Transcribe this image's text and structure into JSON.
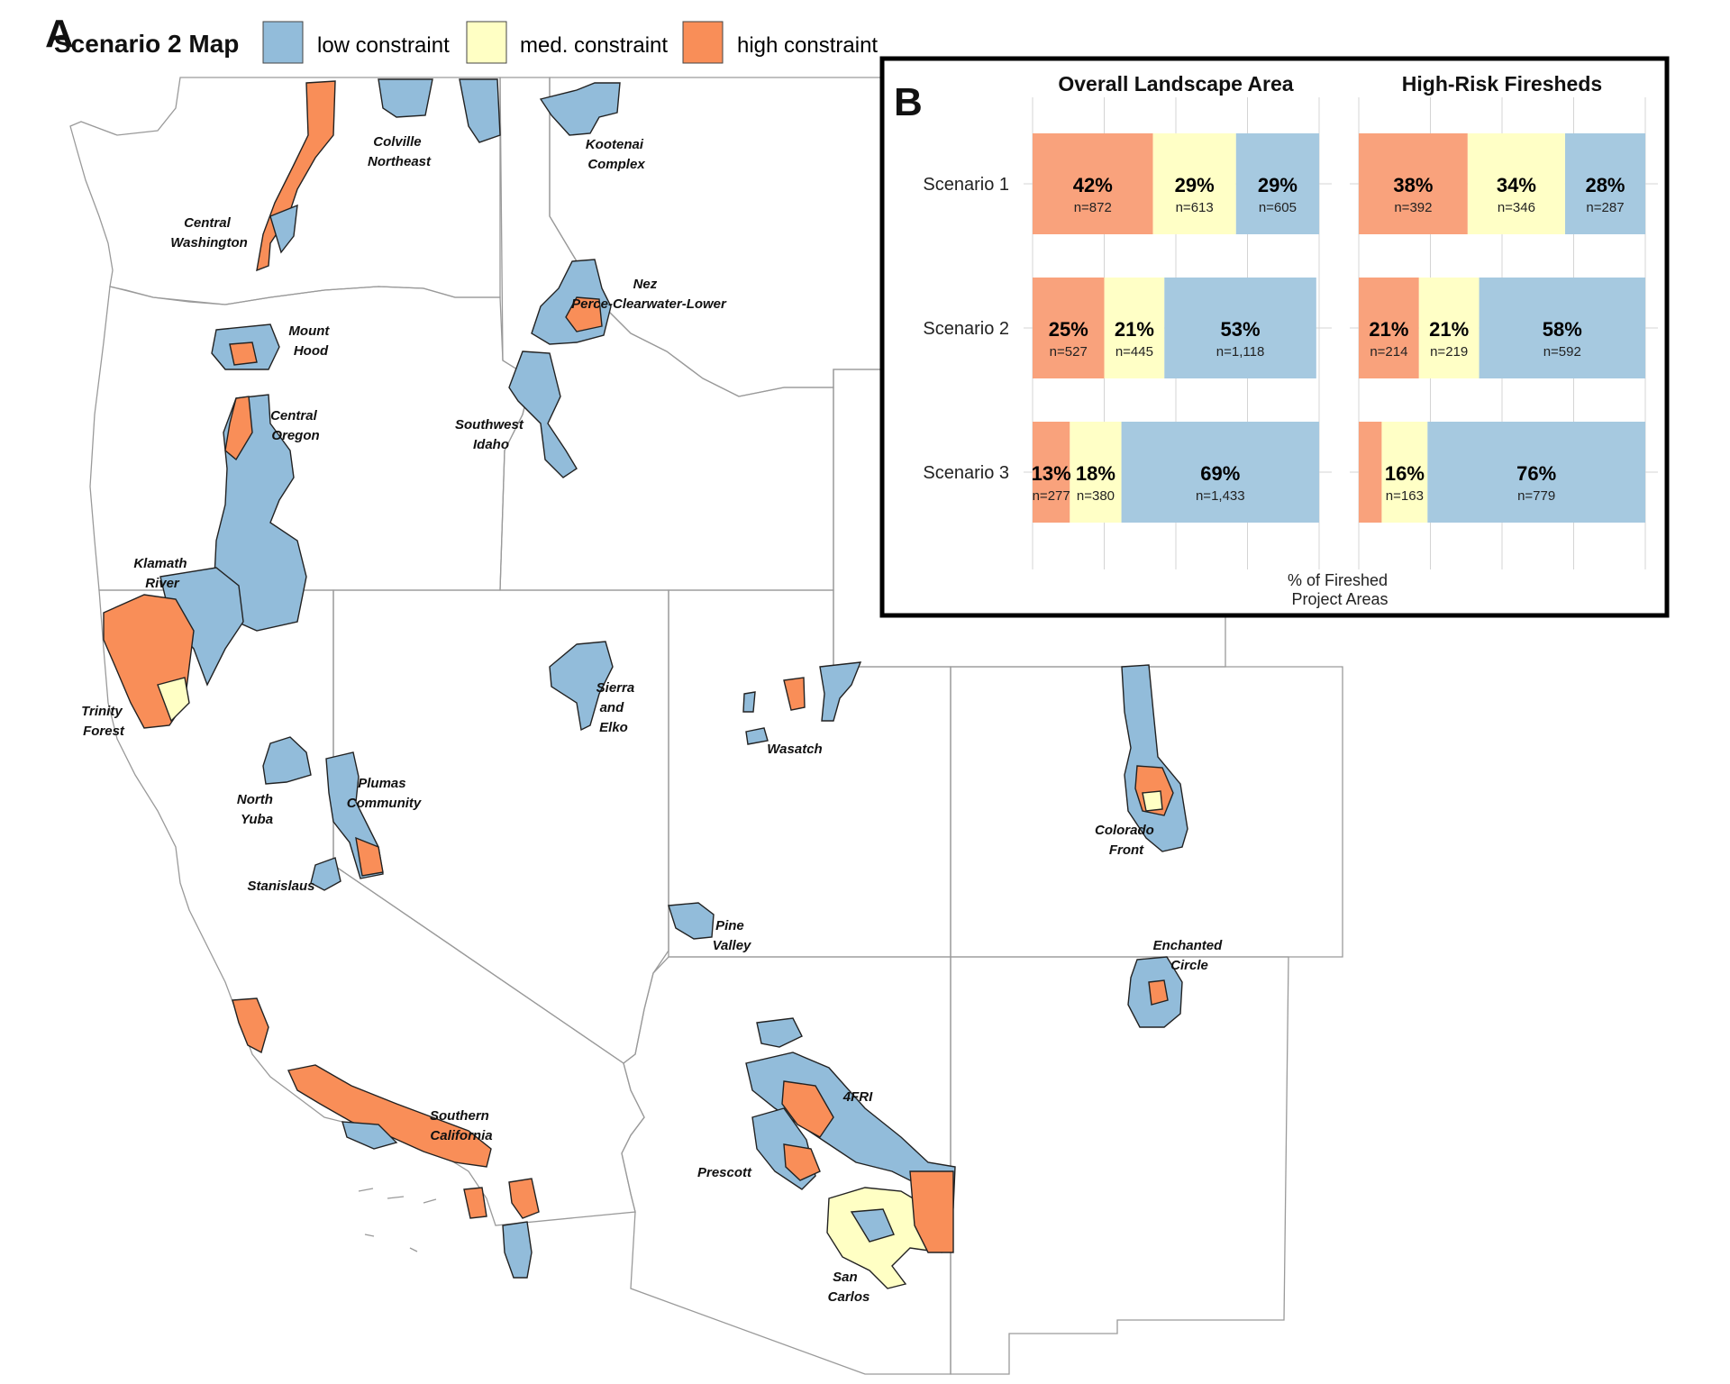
{
  "panel_a": {
    "letter": "A",
    "title": "Scenario 2 Map",
    "legend": [
      {
        "label": "low constraint",
        "color": "#92BCDA"
      },
      {
        "label": "med. constraint",
        "color": "#FFFFC4"
      },
      {
        "label": "high constraint",
        "color": "#F98E58"
      }
    ],
    "regions": [
      {
        "name": "Colville Northeast",
        "lines": [
          "Colville",
          "Northeast"
        ]
      },
      {
        "name": "Kootenai Complex",
        "lines": [
          "Kootenai",
          "Complex"
        ]
      },
      {
        "name": "Central Washington",
        "lines": [
          "Central",
          "Washington"
        ]
      },
      {
        "name": "Nez Perce-Clearwater-Lower",
        "lines": [
          "Nez",
          "Perce-Clearwater-Lower"
        ]
      },
      {
        "name": "Mount Hood",
        "lines": [
          "Mount",
          "Hood"
        ]
      },
      {
        "name": "Central Oregon",
        "lines": [
          "Central",
          "Oregon"
        ]
      },
      {
        "name": "Southwest Idaho",
        "lines": [
          "Southwest",
          "Idaho"
        ]
      },
      {
        "name": "Klamath River",
        "lines": [
          "Klamath",
          "River"
        ]
      },
      {
        "name": "Trinity Forest",
        "lines": [
          "Trinity",
          "Forest"
        ]
      },
      {
        "name": "Sierra and Elko",
        "lines": [
          "Sierra",
          "and",
          "Elko"
        ]
      },
      {
        "name": "Wasatch",
        "lines": [
          "Wasatch"
        ]
      },
      {
        "name": "North Yuba",
        "lines": [
          "North",
          "Yuba"
        ]
      },
      {
        "name": "Plumas Community",
        "lines": [
          "Plumas",
          "Community"
        ]
      },
      {
        "name": "Stanislaus",
        "lines": [
          "Stanislaus"
        ]
      },
      {
        "name": "Colorado Front",
        "lines": [
          "Colorado",
          "Front"
        ]
      },
      {
        "name": "Pine Valley",
        "lines": [
          "Pine",
          "Valley"
        ]
      },
      {
        "name": "Enchanted Circle",
        "lines": [
          "Enchanted",
          "Circle"
        ]
      },
      {
        "name": "4FRI",
        "lines": [
          "4FRI"
        ]
      },
      {
        "name": "Southern California",
        "lines": [
          "Southern",
          "California"
        ]
      },
      {
        "name": "Prescott",
        "lines": [
          "Prescott"
        ]
      },
      {
        "name": "San Carlos",
        "lines": [
          "San",
          "Carlos"
        ]
      }
    ]
  },
  "chart_data": {
    "type": "bar",
    "orientation": "horizontal",
    "stacked": true,
    "panel_letter": "B",
    "xlabel": "% of Fireshed Project Areas",
    "categories": [
      "Scenario 1",
      "Scenario 2",
      "Scenario 3"
    ],
    "series_colors": {
      "high": "#F9A27C",
      "med": "#FFFFC6",
      "low": "#A6C9E0"
    },
    "facets": [
      {
        "title": "Overall Landscape Area",
        "bars": [
          {
            "category": "Scenario 1",
            "segments": [
              {
                "level": "high",
                "pct": 42,
                "label": "42%",
                "n": "n=872"
              },
              {
                "level": "med",
                "pct": 29,
                "label": "29%",
                "n": "n=613"
              },
              {
                "level": "low",
                "pct": 29,
                "label": "29%",
                "n": "n=605"
              }
            ]
          },
          {
            "category": "Scenario 2",
            "segments": [
              {
                "level": "high",
                "pct": 25,
                "label": "25%",
                "n": "n=527"
              },
              {
                "level": "med",
                "pct": 21,
                "label": "21%",
                "n": "n=445"
              },
              {
                "level": "low",
                "pct": 53,
                "label": "53%",
                "n": "n=1,118"
              }
            ]
          },
          {
            "category": "Scenario 3",
            "segments": [
              {
                "level": "high",
                "pct": 13,
                "label": "13%",
                "n": "n=277"
              },
              {
                "level": "med",
                "pct": 18,
                "label": "18%",
                "n": "n=380"
              },
              {
                "level": "low",
                "pct": 69,
                "label": "69%",
                "n": "n=1,433"
              }
            ]
          }
        ]
      },
      {
        "title": "High-Risk Firesheds",
        "bars": [
          {
            "category": "Scenario 1",
            "segments": [
              {
                "level": "high",
                "pct": 38,
                "label": "38%",
                "n": "n=392"
              },
              {
                "level": "med",
                "pct": 34,
                "label": "34%",
                "n": "n=346"
              },
              {
                "level": "low",
                "pct": 28,
                "label": "28%",
                "n": "n=287"
              }
            ]
          },
          {
            "category": "Scenario 2",
            "segments": [
              {
                "level": "high",
                "pct": 21,
                "label": "21%",
                "n": "n=214"
              },
              {
                "level": "med",
                "pct": 21,
                "label": "21%",
                "n": "n=219"
              },
              {
                "level": "low",
                "pct": 58,
                "label": "58%",
                "n": "n=592"
              }
            ]
          },
          {
            "category": "Scenario 3",
            "segments": [
              {
                "level": "high",
                "pct": 8,
                "label": "",
                "n": ""
              },
              {
                "level": "med",
                "pct": 16,
                "label": "16%",
                "n": "n=163"
              },
              {
                "level": "low",
                "pct": 76,
                "label": "76%",
                "n": "n=779"
              }
            ]
          }
        ]
      }
    ]
  }
}
